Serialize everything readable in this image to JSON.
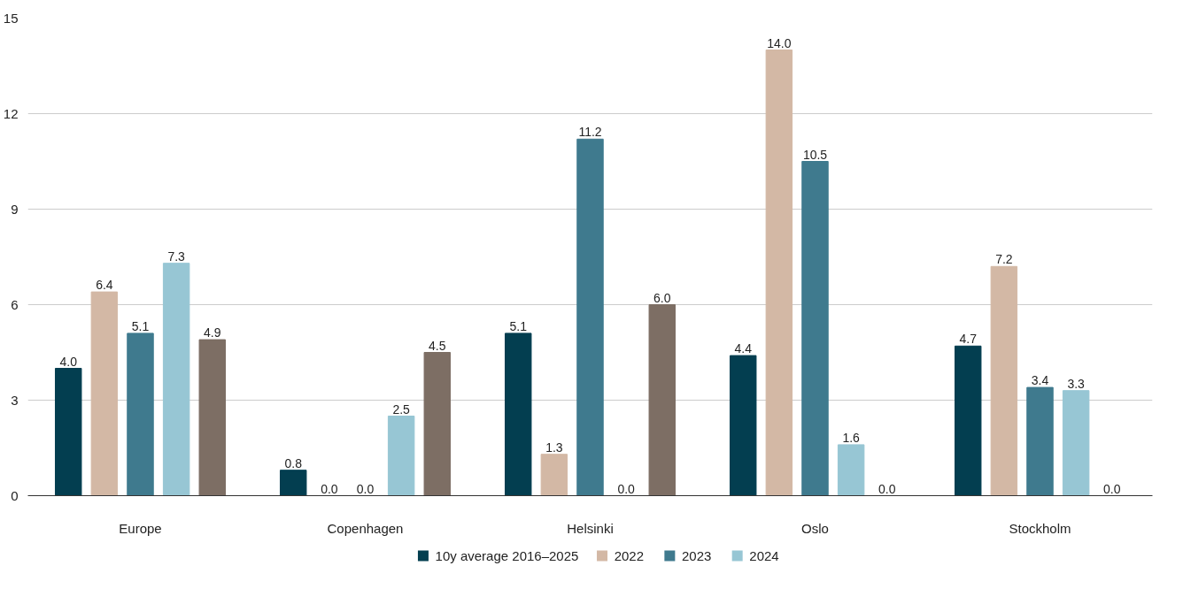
{
  "chart_data": {
    "type": "bar",
    "categories": [
      "Europe",
      "Copenhagen",
      "Helsinki",
      "Oslo",
      "Stockholm"
    ],
    "series": [
      {
        "name": "10y average 2016–2025",
        "color": "#033e50",
        "values": [
          4.0,
          0.8,
          5.1,
          4.4,
          4.7
        ],
        "value_labels": [
          "4.0",
          "0.8",
          "5.1",
          "4.4",
          "4.7"
        ]
      },
      {
        "name": "2022",
        "color": "#d3b8a5",
        "values": [
          6.4,
          0.0,
          1.3,
          14.0,
          7.2
        ],
        "value_labels": [
          "6.4",
          "0.0",
          "1.3",
          "14.0",
          "7.2"
        ]
      },
      {
        "name": "2023",
        "color": "#3f7a8e",
        "values": [
          5.1,
          0.0,
          11.2,
          10.5,
          3.4
        ],
        "value_labels": [
          "5.1",
          "0.0",
          "11.2",
          "10.5",
          "3.4"
        ]
      },
      {
        "name": "2024",
        "color": "#97c6d4",
        "values": [
          7.3,
          2.5,
          0.0,
          1.6,
          3.3
        ],
        "value_labels": [
          "7.3",
          "2.5",
          "0.0",
          "1.6",
          "3.3"
        ]
      },
      {
        "color": "#7d6e64",
        "values": [
          4.9,
          4.5,
          6.0,
          0.0,
          0.0
        ],
        "value_labels": [
          "4.9",
          "4.5",
          "6.0",
          "0.0",
          "0.0"
        ]
      }
    ],
    "ylim": [
      0,
      15
    ],
    "yticks": [
      0,
      3,
      6,
      9,
      12,
      15
    ],
    "grid": "y",
    "legend": "bottom"
  }
}
